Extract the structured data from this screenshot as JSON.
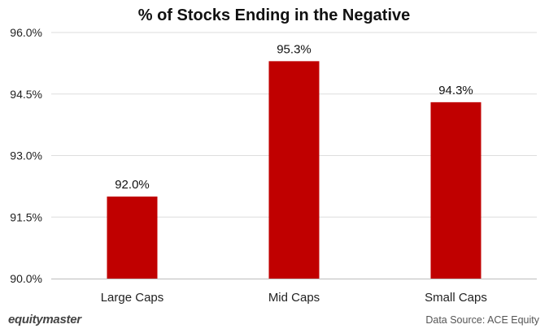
{
  "brand": "equitymaster",
  "source": "Data Source: ACE Equity",
  "colors": {
    "bar": "#c00000",
    "grid": "#dedede"
  },
  "chart_data": {
    "type": "bar",
    "title": "% of Stocks Ending in the Negative",
    "categories": [
      "Large Caps",
      "Mid Caps",
      "Small Caps"
    ],
    "values": [
      92.0,
      95.3,
      94.3
    ],
    "value_labels": [
      "92.0%",
      "95.3%",
      "94.3%"
    ],
    "xlabel": "",
    "ylabel": "",
    "ylim": [
      90.0,
      96.0
    ],
    "yticks": [
      90.0,
      91.5,
      93.0,
      94.5,
      96.0
    ],
    "ytick_labels": [
      "90.0%",
      "91.5%",
      "93.0%",
      "94.5%",
      "96.0%"
    ],
    "grid": true,
    "legend": "none"
  }
}
